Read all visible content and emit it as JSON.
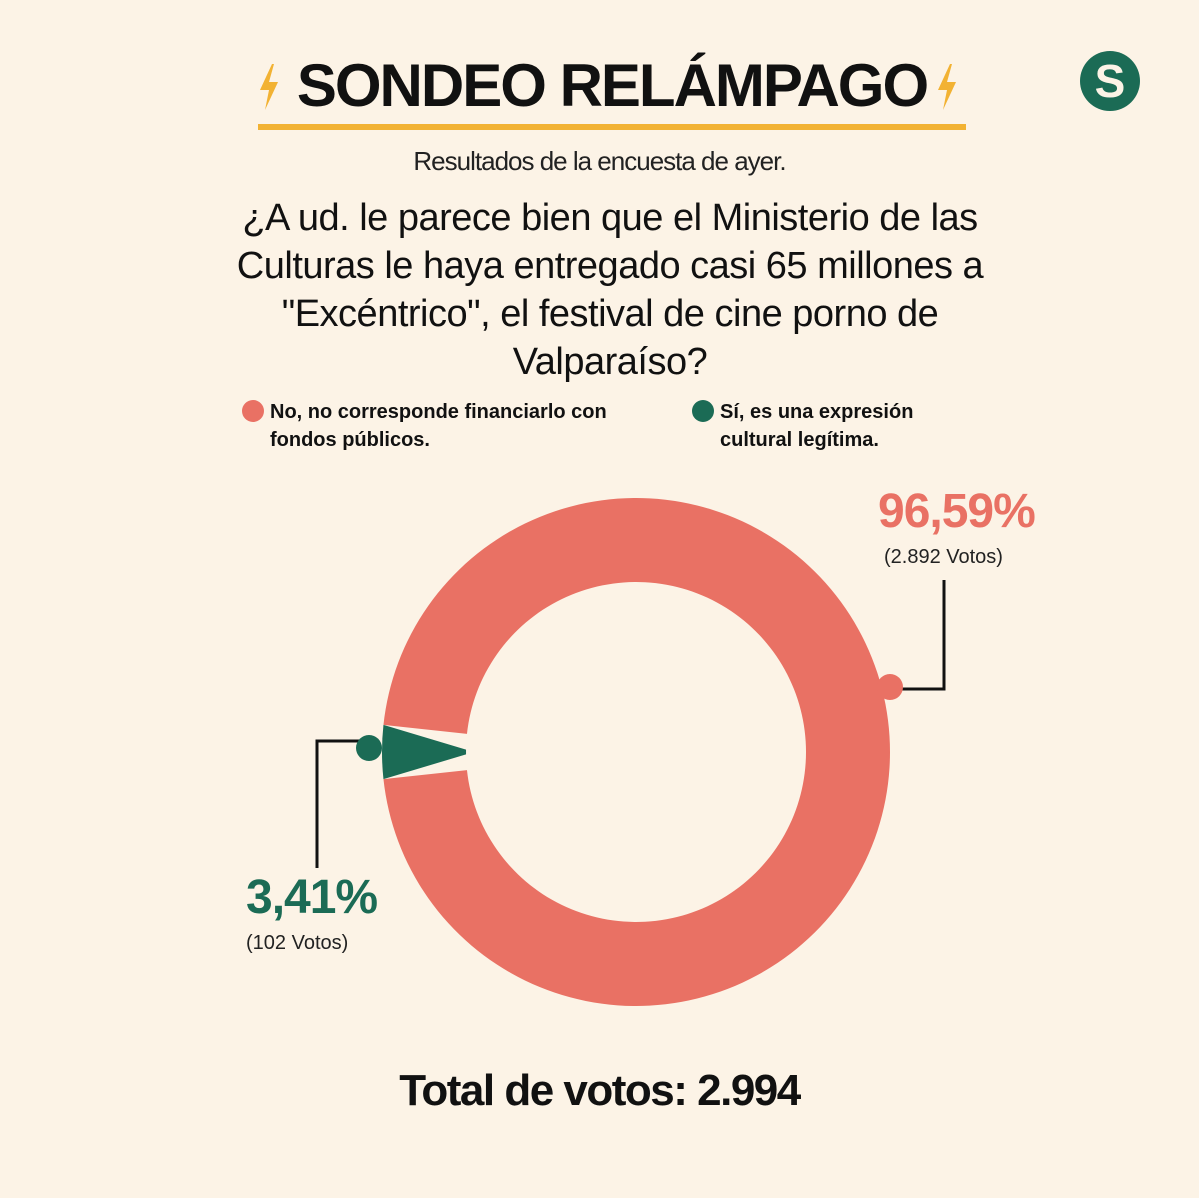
{
  "header": {
    "title": "SONDEO RELÁMPAGO",
    "logo_letter": "S",
    "subtitle": "Resultados de la encuesta de ayer.",
    "question": "¿A ud. le parece bien que el Ministerio de las Culturas le haya entregado casi 65 millones a \"Excéntrico\", el festival de cine porno de Valparaíso?"
  },
  "colors": {
    "no": "#e97164",
    "si": "#1b6b55",
    "accent": "#f2b233",
    "background": "#fcf3e6"
  },
  "icons": {
    "title_decoration": "lightning-bolt-icon",
    "logo": "s-logo"
  },
  "chart_data": {
    "type": "pie",
    "categories": [
      "No, no corresponde financiarlo con fondos públicos.",
      "Sí, es una expresión cultural legítima."
    ],
    "values": [
      96.59,
      3.41
    ],
    "votes": [
      2892,
      102
    ],
    "value_labels": [
      "96,59%",
      "3,41%"
    ],
    "vote_labels": [
      "(2.892 Votos)",
      "(102 Votos)"
    ],
    "legend_position": "top",
    "total_label": "Total de votos: 2.994"
  }
}
